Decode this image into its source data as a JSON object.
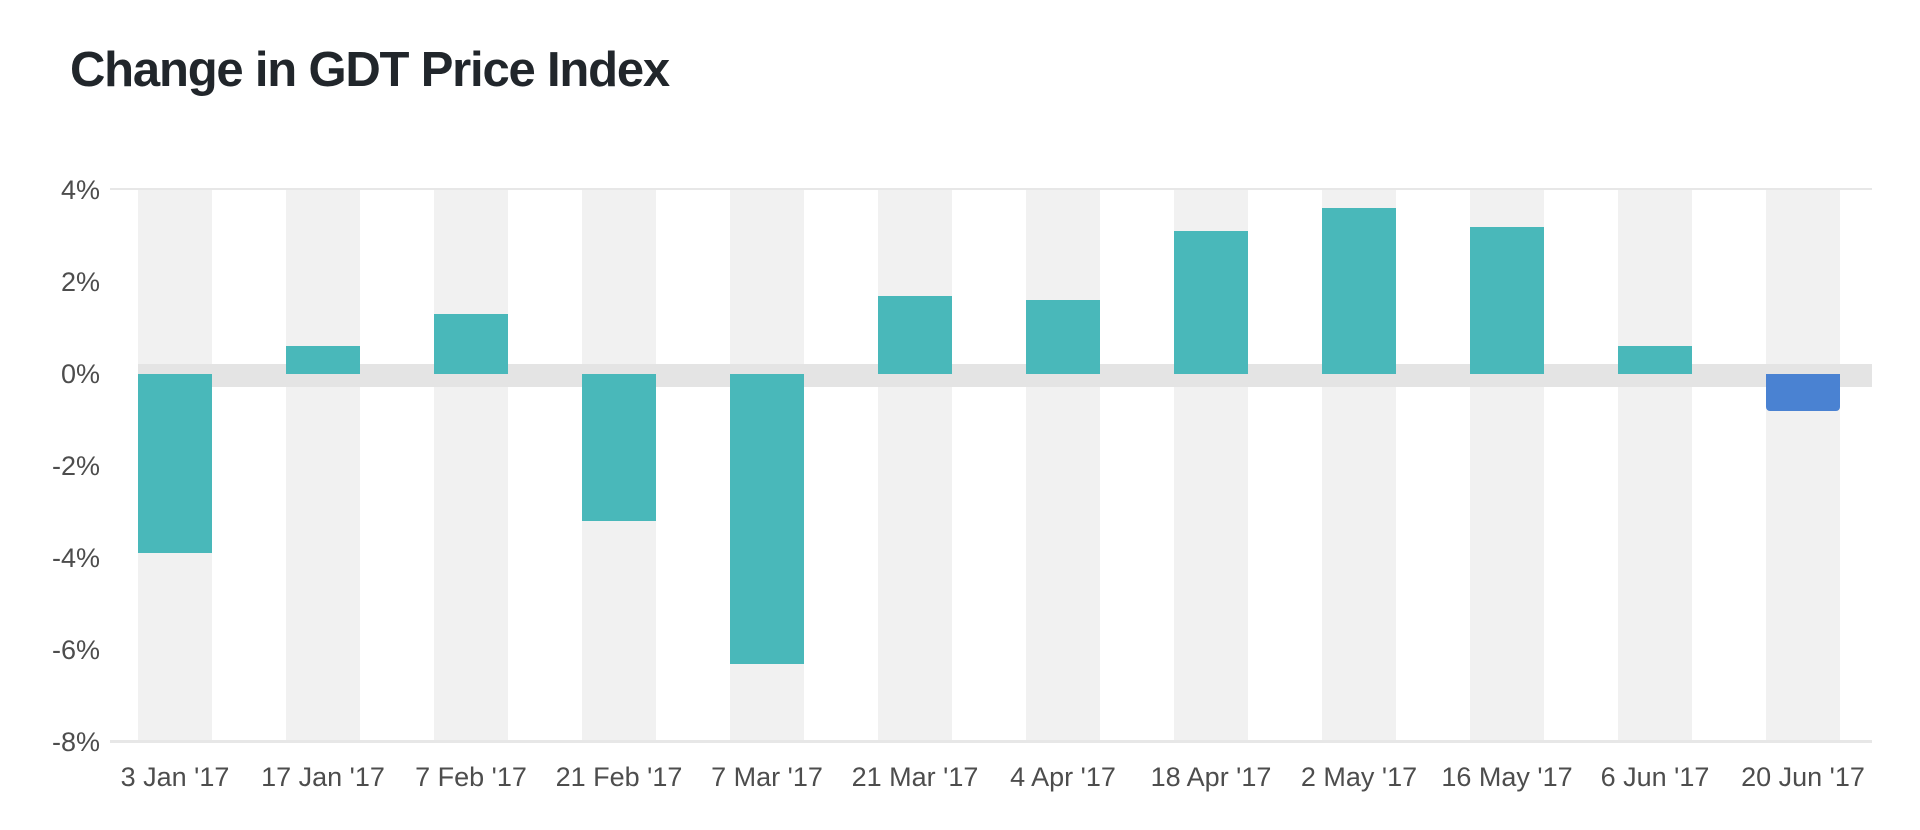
{
  "page": {
    "title": "Change in GDT Price Index"
  },
  "chart_data": {
    "type": "bar",
    "title": "Change in GDT Price Index",
    "categories": [
      "3 Jan '17",
      "17 Jan '17",
      "7 Feb '17",
      "21 Feb '17",
      "7 Mar '17",
      "21 Mar '17",
      "4 Apr '17",
      "18 Apr '17",
      "2 May '17",
      "16 May '17",
      "6 Jun '17",
      "20 Jun '17"
    ],
    "values": [
      -3.9,
      0.6,
      1.3,
      -3.2,
      -6.3,
      1.7,
      1.6,
      3.1,
      3.6,
      3.2,
      0.6,
      -0.8
    ],
    "unit": "%",
    "xlabel": "",
    "ylabel": "",
    "ylim": [
      -8,
      4
    ],
    "ytick_step": 2,
    "ytick_labels": [
      "4%",
      "2%",
      "0%",
      "-2%",
      "-4%",
      "-6%",
      "-8%"
    ],
    "grid": "top-line, zero-band and bottom axis line only; alternating light column stripes behind each bar",
    "legend_position": "none",
    "highlight_index": 11,
    "colors": {
      "bar_default": "#49b8ba",
      "bar_highlight": "#4a82d2",
      "column_stripe": "#f1f1f1",
      "zero_band": "#e4e4e4",
      "grid_line": "#e7e7e7",
      "axis_text": "#4d4d4d",
      "title_text": "#21262b",
      "background": "#ffffff"
    }
  }
}
